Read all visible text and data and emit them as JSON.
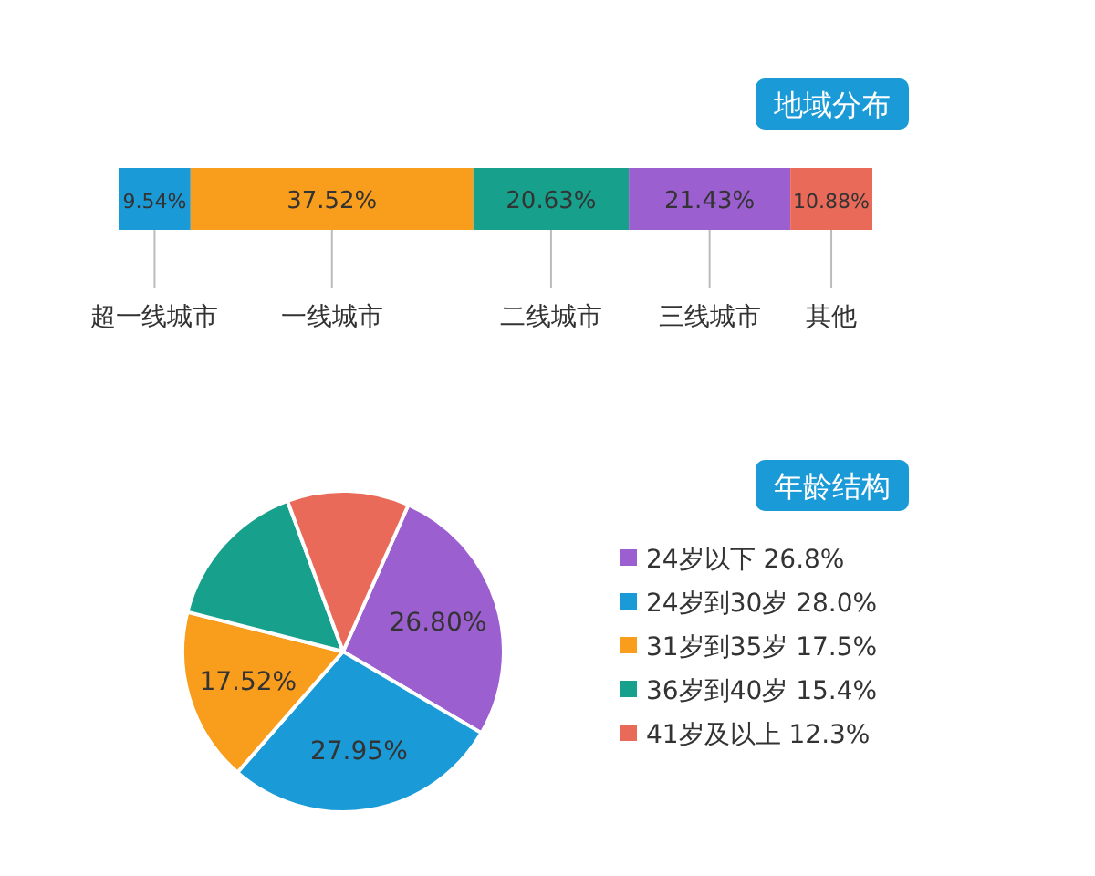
{
  "chart_data": [
    {
      "type": "bar",
      "title": "地域分布",
      "orientation": "horizontal",
      "stacked": true,
      "categories": [
        null
      ],
      "series": [
        {
          "name": "超一线城市",
          "color": "#1a9ad6",
          "values": [
            9.54
          ],
          "value_labels": [
            "9.54%"
          ]
        },
        {
          "name": "一线城市",
          "color": "#f99d1c",
          "values": [
            37.52
          ],
          "value_labels": [
            "37.52%"
          ]
        },
        {
          "name": "二线城市",
          "color": "#17a08c",
          "values": [
            20.63
          ],
          "value_labels": [
            "20.63%"
          ]
        },
        {
          "name": "三线城市",
          "color": "#9b5fd0",
          "values": [
            21.43
          ],
          "value_labels": [
            "21.43%"
          ]
        },
        {
          "name": "其他",
          "color": "#ea6a5a",
          "values": [
            10.88
          ],
          "value_labels": [
            "10.88%"
          ]
        }
      ]
    },
    {
      "type": "pie",
      "title": "年龄结构",
      "legend": "right",
      "categories": [
        "24岁以下 26.8%",
        "24岁到30岁 28.0%",
        "31岁到35岁 17.5%",
        "36岁到40岁 15.4%",
        "41岁及以上 12.3%"
      ],
      "values": [
        26.8,
        27.95,
        17.52,
        15.4,
        12.3
      ],
      "value_labels": [
        "26.80%",
        "27.95%",
        "17.52%",
        null,
        null
      ],
      "colors": [
        "#9b5fd0",
        "#1a9ad6",
        "#f99d1c",
        "#17a08c",
        "#ea6a5a"
      ]
    }
  ]
}
